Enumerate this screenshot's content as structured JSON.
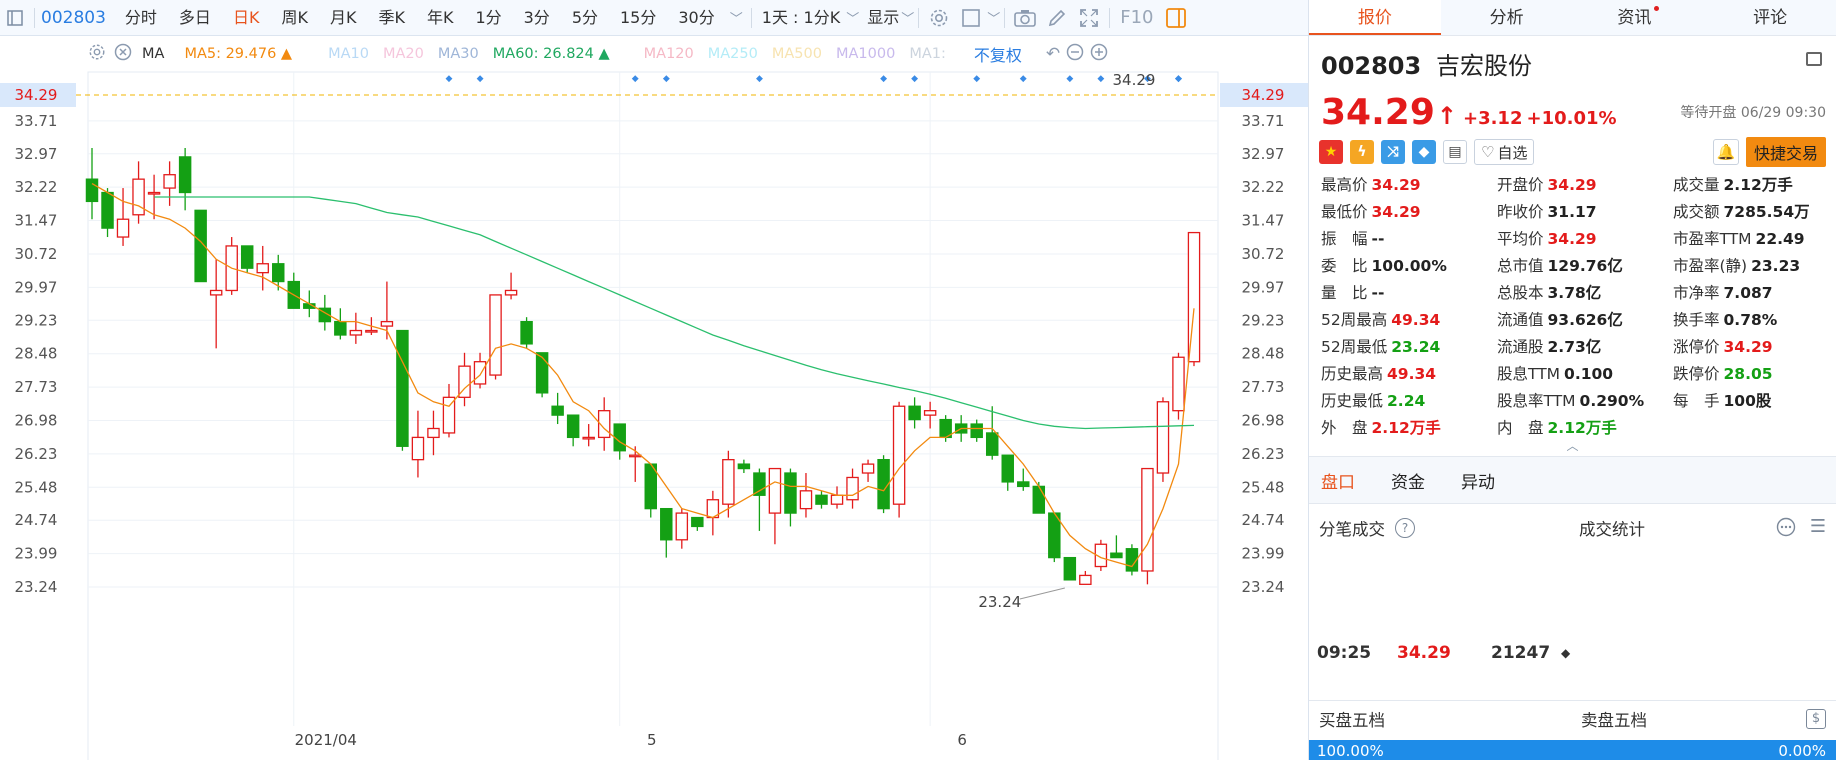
{
  "toolbar": {
    "stock_code": "002803",
    "periods": [
      "分时",
      "多日",
      "日K",
      "周K",
      "月K",
      "季K",
      "年K",
      "1分",
      "3分",
      "5分",
      "15分",
      "30分"
    ],
    "active_period": "日K",
    "interval_label": "1天 : 1分K",
    "display_label": "显示",
    "f10_label": "F10"
  },
  "ma_bar": {
    "label": "MA",
    "ma5": "MA5: 29.476 ▲",
    "ma10": "MA10",
    "ma20": "MA20",
    "ma30": "MA30",
    "ma60": "MA60: 26.824 ▲",
    "ma120": "MA120",
    "ma250": "MA250",
    "ma500": "MA500",
    "ma1000": "MA1000",
    "ma1x": "MA1:",
    "adjust": "不复权"
  },
  "colors": {
    "up": "#e31b1b",
    "down": "#14a014",
    "ma5": "#f28a10",
    "ma60": "#2bbf6e",
    "accent": "#e8541e",
    "link": "#2a7de1"
  },
  "chart_data": {
    "type": "candlestick",
    "y_ticks": [
      "34.29",
      "33.71",
      "32.97",
      "32.22",
      "31.47",
      "30.72",
      "29.97",
      "29.23",
      "28.48",
      "27.73",
      "26.98",
      "26.23",
      "25.48",
      "24.74",
      "23.99",
      "23.24"
    ],
    "ylim": [
      23.24,
      34.29
    ],
    "x_labels": [
      "2021/04",
      "5",
      "6"
    ],
    "x_label_index": [
      13,
      34,
      54
    ],
    "last_price_line": "34.29",
    "max_label": "34.29",
    "min_label": "23.24",
    "candles": [
      {
        "o": 32.4,
        "c": 31.9,
        "h": 33.1,
        "l": 31.5
      },
      {
        "o": 32.1,
        "c": 31.3,
        "h": 32.2,
        "l": 31.1
      },
      {
        "o": 31.1,
        "c": 31.5,
        "h": 32.2,
        "l": 30.9
      },
      {
        "o": 31.6,
        "c": 32.4,
        "h": 32.8,
        "l": 31.4
      },
      {
        "o": 32.1,
        "c": 32.1,
        "h": 32.5,
        "l": 31.5
      },
      {
        "o": 32.2,
        "c": 32.5,
        "h": 32.8,
        "l": 31.8
      },
      {
        "o": 32.9,
        "c": 32.1,
        "h": 33.1,
        "l": 31.7
      },
      {
        "o": 31.7,
        "c": 30.1,
        "h": 31.7,
        "l": 30.1
      },
      {
        "o": 29.8,
        "c": 29.9,
        "h": 30.6,
        "l": 28.6
      },
      {
        "o": 29.9,
        "c": 30.9,
        "h": 31.1,
        "l": 29.8
      },
      {
        "o": 30.9,
        "c": 30.4,
        "h": 30.9,
        "l": 30.3
      },
      {
        "o": 30.3,
        "c": 30.5,
        "h": 30.9,
        "l": 29.9
      },
      {
        "o": 30.5,
        "c": 30.1,
        "h": 30.7,
        "l": 29.9
      },
      {
        "o": 30.1,
        "c": 29.5,
        "h": 30.3,
        "l": 29.5
      },
      {
        "o": 29.6,
        "c": 29.5,
        "h": 29.9,
        "l": 29.3
      },
      {
        "o": 29.5,
        "c": 29.2,
        "h": 29.8,
        "l": 29.0
      },
      {
        "o": 29.2,
        "c": 28.9,
        "h": 29.5,
        "l": 28.8
      },
      {
        "o": 28.9,
        "c": 29.0,
        "h": 29.4,
        "l": 28.7
      },
      {
        "o": 29.0,
        "c": 29.0,
        "h": 29.3,
        "l": 28.9
      },
      {
        "o": 29.1,
        "c": 29.2,
        "h": 30.1,
        "l": 28.8
      },
      {
        "o": 29.0,
        "c": 26.4,
        "h": 29.0,
        "l": 26.3
      },
      {
        "o": 26.1,
        "c": 26.6,
        "h": 27.2,
        "l": 25.7
      },
      {
        "o": 26.6,
        "c": 26.8,
        "h": 27.2,
        "l": 26.2
      },
      {
        "o": 26.7,
        "c": 27.5,
        "h": 27.8,
        "l": 26.6
      },
      {
        "o": 27.5,
        "c": 28.2,
        "h": 28.5,
        "l": 27.3
      },
      {
        "o": 27.8,
        "c": 28.3,
        "h": 28.5,
        "l": 27.7
      },
      {
        "o": 28.0,
        "c": 29.8,
        "h": 29.8,
        "l": 27.9
      },
      {
        "o": 29.8,
        "c": 29.9,
        "h": 30.3,
        "l": 29.7
      },
      {
        "o": 29.2,
        "c": 28.7,
        "h": 29.3,
        "l": 28.6
      },
      {
        "o": 28.5,
        "c": 27.6,
        "h": 28.5,
        "l": 27.5
      },
      {
        "o": 27.3,
        "c": 27.1,
        "h": 27.6,
        "l": 26.9
      },
      {
        "o": 27.1,
        "c": 26.6,
        "h": 27.1,
        "l": 26.4
      },
      {
        "o": 26.6,
        "c": 26.6,
        "h": 26.9,
        "l": 26.4
      },
      {
        "o": 26.6,
        "c": 27.2,
        "h": 27.5,
        "l": 26.3
      },
      {
        "o": 26.9,
        "c": 26.3,
        "h": 26.9,
        "l": 26.1
      },
      {
        "o": 26.2,
        "c": 26.2,
        "h": 26.4,
        "l": 25.6
      },
      {
        "o": 26.0,
        "c": 25.0,
        "h": 26.0,
        "l": 24.8
      },
      {
        "o": 25.0,
        "c": 24.3,
        "h": 25.0,
        "l": 23.9
      },
      {
        "o": 24.3,
        "c": 24.9,
        "h": 25.0,
        "l": 24.1
      },
      {
        "o": 24.8,
        "c": 24.6,
        "h": 24.8,
        "l": 24.5
      },
      {
        "o": 24.8,
        "c": 25.2,
        "h": 25.4,
        "l": 24.4
      },
      {
        "o": 25.1,
        "c": 26.1,
        "h": 26.3,
        "l": 24.8
      },
      {
        "o": 26.0,
        "c": 25.9,
        "h": 26.1,
        "l": 25.8
      },
      {
        "o": 25.8,
        "c": 25.3,
        "h": 25.9,
        "l": 24.5
      },
      {
        "o": 24.9,
        "c": 25.9,
        "h": 25.9,
        "l": 24.2
      },
      {
        "o": 25.8,
        "c": 24.9,
        "h": 25.9,
        "l": 24.6
      },
      {
        "o": 25.0,
        "c": 25.4,
        "h": 25.8,
        "l": 24.8
      },
      {
        "o": 25.3,
        "c": 25.1,
        "h": 25.4,
        "l": 25.0
      },
      {
        "o": 25.1,
        "c": 25.3,
        "h": 25.5,
        "l": 25.0
      },
      {
        "o": 25.2,
        "c": 25.7,
        "h": 25.9,
        "l": 25.0
      },
      {
        "o": 25.8,
        "c": 26.0,
        "h": 26.1,
        "l": 25.6
      },
      {
        "o": 26.1,
        "c": 25.0,
        "h": 26.2,
        "l": 24.9
      },
      {
        "o": 25.1,
        "c": 27.3,
        "h": 27.4,
        "l": 24.8
      },
      {
        "o": 27.3,
        "c": 27.0,
        "h": 27.5,
        "l": 26.8
      },
      {
        "o": 27.1,
        "c": 27.2,
        "h": 27.4,
        "l": 26.8
      },
      {
        "o": 27.0,
        "c": 26.6,
        "h": 27.1,
        "l": 26.5
      },
      {
        "o": 26.9,
        "c": 26.7,
        "h": 27.1,
        "l": 26.5
      },
      {
        "o": 26.9,
        "c": 26.6,
        "h": 27.0,
        "l": 26.5
      },
      {
        "o": 26.7,
        "c": 26.2,
        "h": 27.3,
        "l": 26.1
      },
      {
        "o": 26.2,
        "c": 25.6,
        "h": 26.2,
        "l": 25.4
      },
      {
        "o": 25.6,
        "c": 25.5,
        "h": 25.9,
        "l": 25.4
      },
      {
        "o": 25.5,
        "c": 24.9,
        "h": 25.6,
        "l": 24.9
      },
      {
        "o": 24.9,
        "c": 23.9,
        "h": 24.9,
        "l": 23.8
      },
      {
        "o": 23.9,
        "c": 23.4,
        "h": 23.9,
        "l": 23.4
      },
      {
        "o": 23.3,
        "c": 23.5,
        "h": 23.6,
        "l": 23.3
      },
      {
        "o": 23.7,
        "c": 24.2,
        "h": 24.3,
        "l": 23.6
      },
      {
        "o": 24.0,
        "c": 23.9,
        "h": 24.4,
        "l": 23.9
      },
      {
        "o": 24.1,
        "c": 23.6,
        "h": 24.2,
        "l": 23.5
      },
      {
        "o": 23.6,
        "c": 25.9,
        "h": 25.9,
        "l": 23.3
      },
      {
        "o": 25.8,
        "c": 27.4,
        "h": 27.5,
        "l": 25.6
      },
      {
        "o": 27.2,
        "c": 28.4,
        "h": 28.5,
        "l": 27.0
      },
      {
        "o": 28.3,
        "c": 31.2,
        "h": 31.2,
        "l": 28.2
      }
    ],
    "ma5": [
      32.3,
      32.1,
      31.9,
      31.8,
      31.6,
      31.5,
      31.3,
      31.0,
      30.6,
      30.4,
      30.3,
      30.2,
      30.0,
      29.8,
      29.6,
      29.4,
      29.2,
      29.2,
      29.1,
      29.0,
      28.3,
      27.6,
      27.4,
      27.3,
      27.7,
      28.0,
      28.6,
      28.7,
      28.6,
      28.4,
      28.0,
      27.4,
      27.2,
      26.8,
      26.5,
      26.3,
      26.0,
      25.5,
      25.0,
      24.9,
      24.8,
      25.0,
      25.2,
      25.4,
      25.6,
      25.5,
      25.5,
      25.4,
      25.3,
      25.3,
      25.5,
      25.4,
      25.9,
      26.3,
      26.6,
      26.6,
      26.8,
      26.8,
      26.8,
      26.4,
      26.0,
      25.5,
      24.9,
      24.4,
      24.1,
      23.9,
      23.8,
      23.7,
      24.2,
      25.0,
      26.0,
      29.5
    ],
    "ma60": [
      32.0,
      32.0,
      32.0,
      32.0,
      32.0,
      32.0,
      32.0,
      32.0,
      32.0,
      32.0,
      32.0,
      31.95,
      31.9,
      31.85,
      31.75,
      31.65,
      31.6,
      31.55,
      31.45,
      31.35,
      31.25,
      31.15,
      31.0,
      30.85,
      30.7,
      30.55,
      30.4,
      30.25,
      30.1,
      29.95,
      29.8,
      29.65,
      29.5,
      29.35,
      29.2,
      29.05,
      28.9,
      28.78,
      28.66,
      28.55,
      28.44,
      28.33,
      28.22,
      28.12,
      28.03,
      27.95,
      27.87,
      27.8,
      27.72,
      27.65,
      27.57,
      27.48,
      27.38,
      27.28,
      27.18,
      27.08,
      26.98,
      26.9,
      26.85,
      26.82,
      26.8,
      26.81,
      26.82,
      26.83,
      26.84,
      26.85,
      26.86,
      26.87
    ]
  },
  "right_tabs": [
    "报价",
    "分析",
    "资讯",
    "评论"
  ],
  "quote": {
    "code": "002803",
    "name": "吉宏股份",
    "price": "34.29",
    "change": "+3.12",
    "pct": "+10.01%",
    "status": "等待开盘 06/29 09:30",
    "watch_label": "自选",
    "trade_label": "快捷交易"
  },
  "stats": [
    {
      "k": "最高价",
      "v": "34.29",
      "c": "red"
    },
    {
      "k": "开盘价",
      "v": "34.29",
      "c": "red"
    },
    {
      "k": "成交量",
      "v": "2.12万手",
      "c": ""
    },
    {
      "k": "最低价",
      "v": "34.29",
      "c": "red"
    },
    {
      "k": "昨收价",
      "v": "31.17",
      "c": ""
    },
    {
      "k": "成交额",
      "v": "7285.54万",
      "c": ""
    },
    {
      "k": "振　幅",
      "v": "--",
      "c": ""
    },
    {
      "k": "平均价",
      "v": "34.29",
      "c": "red"
    },
    {
      "k": "市盈率TTM",
      "v": "22.49",
      "c": ""
    },
    {
      "k": "委　比",
      "v": "100.00%",
      "c": ""
    },
    {
      "k": "总市值",
      "v": "129.76亿",
      "c": ""
    },
    {
      "k": "市盈率(静)",
      "v": "23.23",
      "c": ""
    },
    {
      "k": "量　比",
      "v": "--",
      "c": ""
    },
    {
      "k": "总股本",
      "v": "3.78亿",
      "c": ""
    },
    {
      "k": "市净率",
      "v": "7.087",
      "c": ""
    },
    {
      "k": "52周最高",
      "v": "49.34",
      "c": "red"
    },
    {
      "k": "流通值",
      "v": "93.626亿",
      "c": ""
    },
    {
      "k": "换手率",
      "v": "0.78%",
      "c": ""
    },
    {
      "k": "52周最低",
      "v": "23.24",
      "c": "grn"
    },
    {
      "k": "流通股",
      "v": "2.73亿",
      "c": ""
    },
    {
      "k": "涨停价",
      "v": "34.29",
      "c": "red"
    },
    {
      "k": "历史最高",
      "v": "49.34",
      "c": "red"
    },
    {
      "k": "股息TTM",
      "v": "0.100",
      "c": ""
    },
    {
      "k": "跌停价",
      "v": "28.05",
      "c": "grn"
    },
    {
      "k": "历史最低",
      "v": "2.24",
      "c": "grn"
    },
    {
      "k": "股息率TTM",
      "v": "0.290%",
      "c": ""
    },
    {
      "k": "每　手",
      "v": "100股",
      "c": ""
    },
    {
      "k": "外　盘",
      "v": "2.12万手",
      "c": "red"
    },
    {
      "k": "内　盘",
      "v": "2.12万手",
      "c": "grn"
    },
    {
      "k": "",
      "v": "",
      "c": ""
    }
  ],
  "sub_tabs": [
    "盘口",
    "资金",
    "异动"
  ],
  "ticks_header": {
    "left": "分笔成交",
    "right": "成交统计"
  },
  "tick": {
    "time": "09:25",
    "price": "34.29",
    "volume": "21247"
  },
  "five": {
    "buy": "买盘五档",
    "sell": "卖盘五档"
  },
  "ratio": {
    "left": "100.00%",
    "right": "0.00%"
  }
}
